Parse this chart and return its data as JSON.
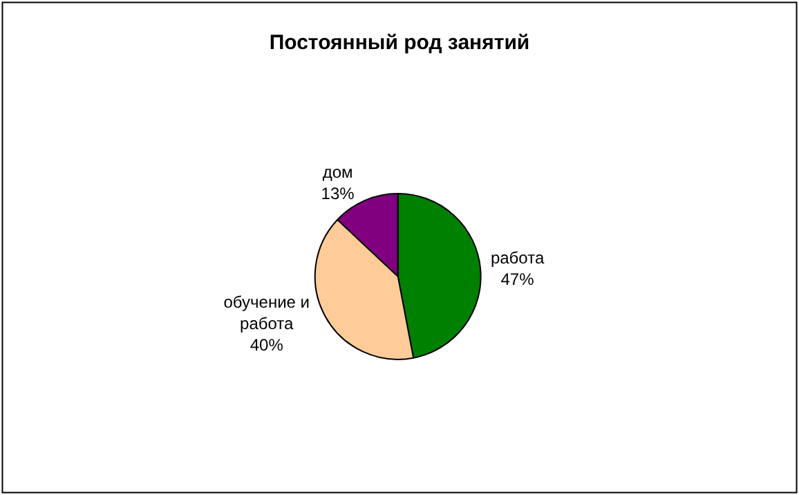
{
  "chart_data": {
    "type": "pie",
    "title": "Постоянный род занятий",
    "categories": [
      "работа",
      "обучение и работа",
      "дом"
    ],
    "values": [
      47,
      40,
      13
    ],
    "value_labels": [
      "47%",
      "40%",
      "13%"
    ],
    "colors": [
      "#008000",
      "#ffcc99",
      "#800080"
    ],
    "legend": false
  }
}
